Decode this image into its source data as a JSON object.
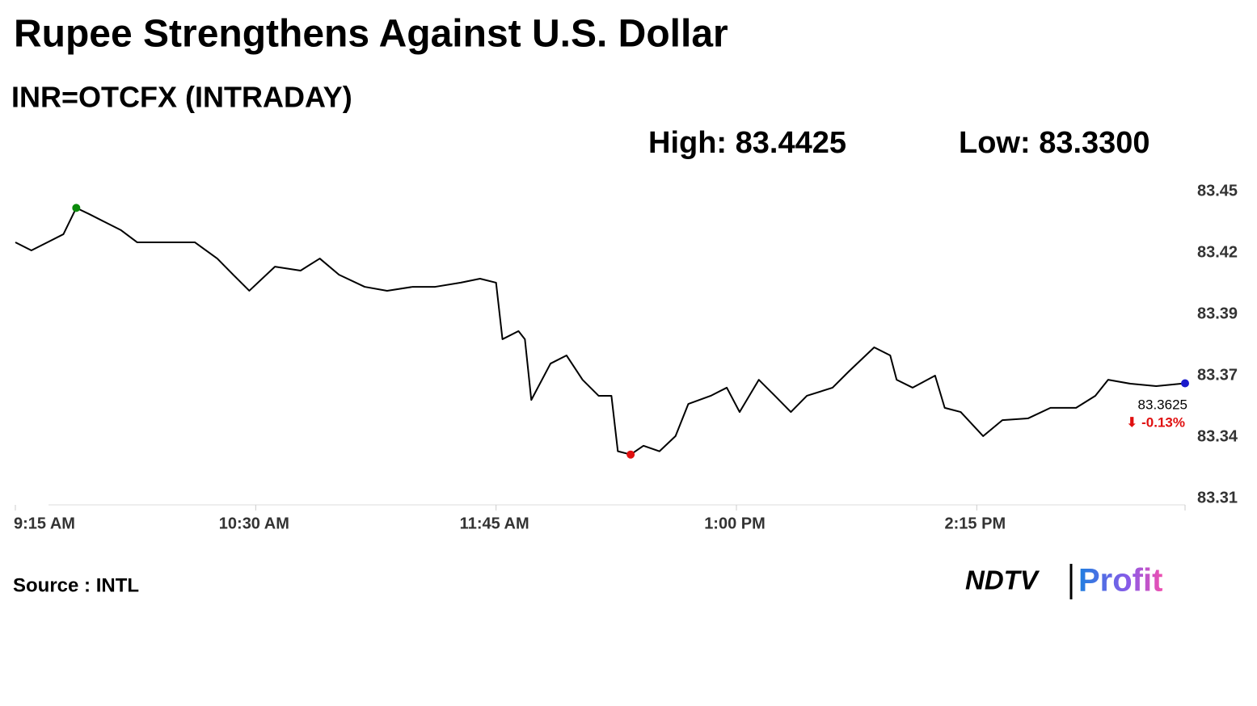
{
  "chart_data": {
    "type": "line",
    "title": "Rupee Strengthens Against U.S. Dollar",
    "subtitle": "INR=OTCFX (INTRADAY)",
    "annotations": [
      "High: 83.4425",
      "Low: 83.3300"
    ],
    "end_labels": [
      "83.3625",
      "⬇ -0.13%"
    ],
    "source": "Source : INTL",
    "logo": [
      "NDTV",
      "Profit"
    ],
    "color": "#000000",
    "marker_colors": {
      "high": "#0a8a0a",
      "low": "#e01010",
      "last": "#1a1acc"
    },
    "change_color": "#e01010",
    "x": [
      555,
      560,
      565,
      570,
      574,
      578,
      583,
      588,
      593,
      601,
      611,
      618,
      623,
      628,
      636,
      644,
      650,
      656,
      664,
      671,
      679,
      686,
      694,
      700,
      705,
      707,
      712,
      714,
      716,
      722,
      727,
      732,
      737,
      741,
      743,
      747,
      751,
      756,
      761,
      765,
      772,
      777,
      781,
      787,
      792,
      797,
      802,
      810,
      815,
      823,
      828,
      830,
      835,
      842,
      845,
      850,
      857,
      863,
      871,
      878,
      886,
      892,
      896,
      903,
      911,
      920
    ],
    "values": [
      83.4268,
      83.4231,
      83.4268,
      83.4305,
      83.4425,
      83.4397,
      83.436,
      83.4323,
      83.4268,
      83.4268,
      83.4268,
      83.4194,
      83.412,
      83.4047,
      83.4157,
      83.4139,
      83.4194,
      83.412,
      83.4065,
      83.4047,
      83.4065,
      83.4065,
      83.4084,
      83.4102,
      83.4084,
      83.3826,
      83.3863,
      83.3826,
      83.3549,
      83.3715,
      83.3752,
      83.3641,
      83.3568,
      83.3568,
      83.3315,
      83.33,
      83.334,
      83.3315,
      83.3384,
      83.3531,
      83.3568,
      83.3605,
      83.3494,
      83.3641,
      83.3568,
      83.3494,
      83.3568,
      83.3605,
      83.3678,
      83.3789,
      83.3752,
      83.3641,
      83.3605,
      83.366,
      83.3513,
      83.3494,
      83.3384,
      83.3457,
      83.3465,
      83.3513,
      83.3513,
      83.3568,
      83.3641,
      83.3623,
      83.3612,
      83.3625
    ],
    "xlim": [
      555,
      920
    ],
    "xticks": [
      {
        "value": 555,
        "label": "9:15 AM"
      },
      {
        "value": 630,
        "label": "10:30 AM"
      },
      {
        "value": 705,
        "label": "11:45 AM"
      },
      {
        "value": 780,
        "label": "1:00 PM"
      },
      {
        "value": 855,
        "label": "2:15 PM"
      }
    ],
    "ylim": [
      83.31,
      83.45
    ],
    "yticks": [
      {
        "value": 83.45,
        "label": "83.45"
      },
      {
        "value": 83.422,
        "label": "83.42"
      },
      {
        "value": 83.394,
        "label": "83.39"
      },
      {
        "value": 83.366,
        "label": "83.37"
      },
      {
        "value": 83.338,
        "label": "83.34"
      },
      {
        "value": 83.31,
        "label": "83.31"
      }
    ],
    "grid": false
  }
}
